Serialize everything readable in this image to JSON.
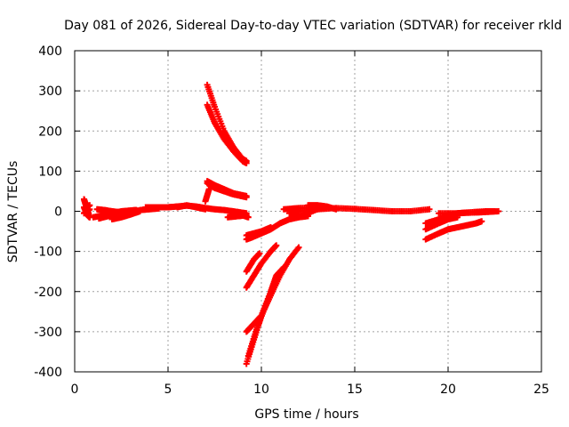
{
  "chart_data": {
    "type": "scatter",
    "title": "Day 081 of 2026, Sidereal Day-to-day VTEC variation (SDTVAR) for receiver rkld",
    "xlabel": "GPS time / hours",
    "ylabel": "SDTVAR / TECUs",
    "xlim": [
      0,
      25
    ],
    "ylim": [
      -400,
      400
    ],
    "xticks": [
      0,
      5,
      10,
      15,
      20,
      25
    ],
    "yticks": [
      -400,
      -300,
      -200,
      -100,
      0,
      100,
      200,
      300,
      400
    ],
    "grid": true,
    "marker": "+",
    "color": "#ff0000",
    "series": [
      {
        "segments": [
          [
            [
              0.5,
              30
            ],
            [
              0.6,
              15
            ],
            [
              0.7,
              0
            ],
            [
              0.8,
              -15
            ]
          ],
          [
            [
              0.5,
              10
            ],
            [
              0.6,
              0
            ],
            [
              0.7,
              -10
            ],
            [
              0.8,
              -15
            ]
          ],
          [
            [
              0.5,
              -5
            ],
            [
              0.65,
              0
            ],
            [
              0.8,
              5
            ]
          ],
          [
            [
              0.6,
              10
            ],
            [
              0.7,
              12
            ],
            [
              0.8,
              15
            ]
          ],
          [
            [
              1.0,
              -15
            ],
            [
              1.5,
              -10
            ],
            [
              2.0,
              -5
            ],
            [
              2.5,
              0
            ],
            [
              3.0,
              2
            ],
            [
              3.3,
              3
            ]
          ],
          [
            [
              1.2,
              5
            ],
            [
              1.6,
              3
            ],
            [
              2.0,
              0
            ],
            [
              2.5,
              -3
            ],
            [
              3.0,
              -5
            ]
          ],
          [
            [
              1.3,
              -18
            ],
            [
              1.8,
              -12
            ],
            [
              2.4,
              -5
            ],
            [
              3.0,
              0
            ],
            [
              3.5,
              2
            ]
          ],
          [
            [
              2.0,
              -20
            ],
            [
              2.5,
              -15
            ],
            [
              3.0,
              -8
            ],
            [
              3.5,
              0
            ]
          ],
          [
            [
              3.5,
              3
            ],
            [
              4.0,
              5
            ],
            [
              4.5,
              7
            ]
          ],
          [
            [
              3.8,
              10
            ],
            [
              4.5,
              10
            ],
            [
              5.0,
              10
            ],
            [
              5.5,
              12
            ],
            [
              6.0,
              14
            ],
            [
              6.5,
              12
            ],
            [
              7.0,
              8
            ],
            [
              7.5,
              5
            ],
            [
              8.0,
              3
            ],
            [
              8.5,
              0
            ],
            [
              9.2,
              -5
            ]
          ],
          [
            [
              5.5,
              10
            ],
            [
              6.0,
              15
            ],
            [
              6.5,
              10
            ],
            [
              7.0,
              5
            ]
          ],
          [
            [
              8.5,
              -5
            ],
            [
              9.0,
              -10
            ],
            [
              9.3,
              -15
            ]
          ],
          [
            [
              8.2,
              -15
            ],
            [
              8.8,
              -12
            ],
            [
              9.2,
              -10
            ]
          ],
          [
            [
              7.1,
              315
            ],
            [
              7.5,
              260
            ],
            [
              8.0,
              200
            ],
            [
              8.5,
              160
            ],
            [
              9.0,
              130
            ],
            [
              9.2,
              125
            ]
          ],
          [
            [
              7.1,
              265
            ],
            [
              7.5,
              220
            ],
            [
              8.0,
              180
            ],
            [
              8.5,
              150
            ],
            [
              9.0,
              125
            ],
            [
              9.2,
              120
            ]
          ],
          [
            [
              7.1,
              75
            ],
            [
              7.5,
              65
            ],
            [
              8.0,
              55
            ],
            [
              8.5,
              45
            ],
            [
              9.2,
              38
            ]
          ],
          [
            [
              7.1,
              70
            ],
            [
              7.5,
              58
            ],
            [
              8.0,
              50
            ],
            [
              8.5,
              42
            ],
            [
              9.2,
              35
            ]
          ],
          [
            [
              7.0,
              25
            ],
            [
              7.2,
              55
            ]
          ],
          [
            [
              9.2,
              -70
            ],
            [
              9.5,
              -65
            ],
            [
              10.0,
              -55
            ],
            [
              10.5,
              -45
            ],
            [
              11.0,
              -30
            ],
            [
              11.5,
              -20
            ],
            [
              12.0,
              -15
            ],
            [
              12.5,
              -12
            ]
          ],
          [
            [
              9.2,
              -60
            ],
            [
              9.6,
              -55
            ],
            [
              10.0,
              -50
            ],
            [
              10.5,
              -40
            ]
          ],
          [
            [
              11.5,
              -5
            ],
            [
              12.0,
              0
            ],
            [
              13.0,
              5
            ],
            [
              14.0,
              8
            ],
            [
              15.0,
              6
            ],
            [
              16.0,
              3
            ],
            [
              17.0,
              0
            ],
            [
              18.0,
              0
            ],
            [
              19.0,
              5
            ]
          ],
          [
            [
              11.2,
              5
            ],
            [
              12.0,
              8
            ],
            [
              13.0,
              10
            ],
            [
              13.5,
              12
            ],
            [
              14.0,
              5
            ]
          ],
          [
            [
              11.5,
              -20
            ],
            [
              12.2,
              -10
            ],
            [
              13.0,
              5
            ],
            [
              13.5,
              10
            ]
          ],
          [
            [
              12.5,
              15
            ],
            [
              13.0,
              15
            ],
            [
              13.5,
              12
            ]
          ],
          [
            [
              9.2,
              -150
            ],
            [
              9.6,
              -120
            ],
            [
              9.9,
              -105
            ]
          ],
          [
            [
              9.2,
              -190
            ],
            [
              9.6,
              -160
            ],
            [
              10.0,
              -130
            ],
            [
              10.5,
              -100
            ],
            [
              10.8,
              -85
            ]
          ],
          [
            [
              9.2,
              -300
            ],
            [
              9.6,
              -280
            ],
            [
              10.0,
              -260
            ],
            [
              10.5,
              -210
            ],
            [
              11.0,
              -160
            ],
            [
              11.5,
              -120
            ],
            [
              12.0,
              -90
            ]
          ],
          [
            [
              9.2,
              -380
            ],
            [
              9.6,
              -320
            ],
            [
              10.0,
              -260
            ],
            [
              10.5,
              -200
            ],
            [
              10.8,
              -160
            ],
            [
              11.2,
              -140
            ]
          ],
          [
            [
              9.3,
              -360
            ],
            [
              9.7,
              -300
            ],
            [
              10.1,
              -250
            ],
            [
              10.6,
              -190
            ],
            [
              11.0,
              -150
            ]
          ],
          [
            [
              18.8,
              -70
            ],
            [
              19.5,
              -55
            ],
            [
              20.0,
              -45
            ],
            [
              20.5,
              -40
            ],
            [
              21.0,
              -35
            ],
            [
              21.5,
              -30
            ],
            [
              21.8,
              -25
            ]
          ],
          [
            [
              18.8,
              -45
            ],
            [
              19.5,
              -30
            ],
            [
              20.0,
              -20
            ],
            [
              20.5,
              -15
            ]
          ],
          [
            [
              18.8,
              -30
            ],
            [
              19.5,
              -20
            ],
            [
              20.0,
              -10
            ],
            [
              20.5,
              -5
            ],
            [
              21.0,
              -3
            ],
            [
              22.0,
              0
            ],
            [
              22.5,
              0
            ]
          ],
          [
            [
              19.5,
              -5
            ],
            [
              20.5,
              -5
            ],
            [
              21.5,
              -3
            ],
            [
              22.0,
              -2
            ],
            [
              22.7,
              0
            ]
          ]
        ]
      }
    ]
  }
}
